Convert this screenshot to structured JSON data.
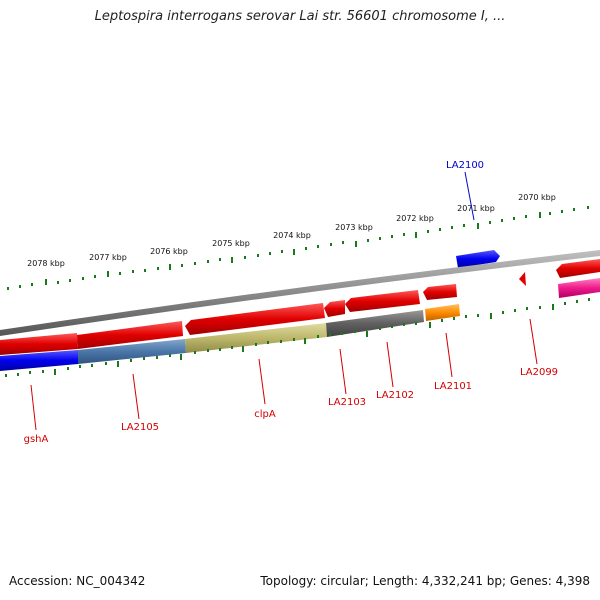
{
  "title": "Leptospira interrogans serovar Lai str. 56601 chromosome I, ...",
  "footer": {
    "accession": "Accession: NC_004342",
    "summary": "Topology: circular; Length: 4,332,241 bp; Genes: 4,398"
  },
  "colors": {
    "backbone": "#8c8c8c",
    "forward_gene": "#e00000",
    "tick": "#1a7a1a",
    "label_red": "#d40000",
    "label_blue": "#0000cc"
  },
  "kbp_ticks": [
    "2078 kbp",
    "2077 kbp",
    "2076 kbp",
    "2075 kbp",
    "2074 kbp",
    "2073 kbp",
    "2072 kbp",
    "2071 kbp",
    "2070 kbp"
  ],
  "genes": [
    "gshA",
    "LA2105",
    "clpA",
    "LA2103",
    "LA2102",
    "LA2101",
    "LA2099",
    "LA2100"
  ]
}
